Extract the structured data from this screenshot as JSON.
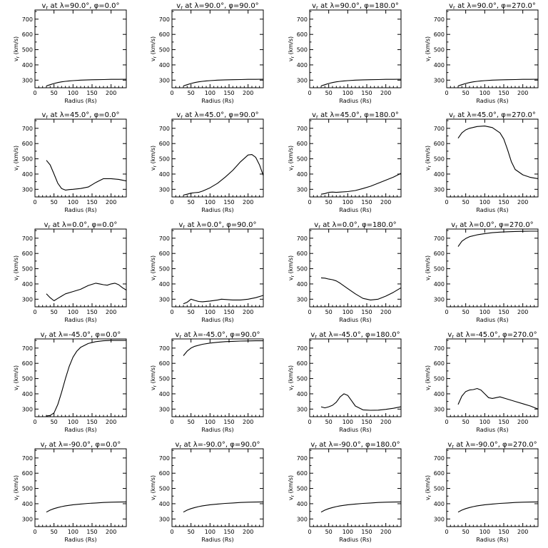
{
  "figure": {
    "axis_common": {
      "xlabel": "Radius (Rs)",
      "ylabel": "vr (km/s)",
      "xlim": [
        0,
        240
      ],
      "ylim": [
        250,
        760
      ],
      "xticks": [
        0,
        50,
        100,
        150,
        200
      ],
      "yticks": [
        300,
        400,
        500,
        600,
        700
      ]
    }
  },
  "chart_data": [
    {
      "type": "line",
      "title": "vr at λ=90.0°, φ=0.0°",
      "lambda_deg": "90.0",
      "phi_deg": "0.0",
      "xlabel": "Radius (Rs)",
      "ylabel": "vr (km/s)",
      "xlim": [
        0,
        240
      ],
      "ylim": [
        250,
        760
      ],
      "series": [
        {
          "x": [
            30,
            40,
            50,
            60,
            70,
            80,
            90,
            100,
            120,
            140,
            160,
            180,
            200,
            220,
            240
          ],
          "y": [
            262,
            270,
            278,
            284,
            289,
            292,
            295,
            297,
            300,
            302,
            303,
            304,
            305,
            305,
            306
          ]
        }
      ]
    },
    {
      "type": "line",
      "title": "vr at λ=90.0°, φ=90.0°",
      "lambda_deg": "90.0",
      "phi_deg": "90.0",
      "xlabel": "Radius (Rs)",
      "ylabel": "vr (km/s)",
      "xlim": [
        0,
        240
      ],
      "ylim": [
        250,
        760
      ],
      "series": [
        {
          "x": [
            30,
            40,
            50,
            60,
            70,
            80,
            90,
            100,
            120,
            140,
            160,
            180,
            200,
            220,
            240
          ],
          "y": [
            262,
            270,
            278,
            284,
            289,
            292,
            295,
            297,
            300,
            302,
            303,
            304,
            305,
            305,
            306
          ]
        }
      ]
    },
    {
      "type": "line",
      "title": "vr at λ=90.0°, φ=180.0°",
      "lambda_deg": "90.0",
      "phi_deg": "180.0",
      "xlabel": "Radius (Rs)",
      "ylabel": "vr (km/s)",
      "xlim": [
        0,
        240
      ],
      "ylim": [
        250,
        760
      ],
      "series": [
        {
          "x": [
            30,
            40,
            50,
            60,
            70,
            80,
            90,
            100,
            120,
            140,
            160,
            180,
            200,
            220,
            240
          ],
          "y": [
            262,
            270,
            278,
            284,
            289,
            292,
            295,
            297,
            300,
            302,
            303,
            304,
            305,
            305,
            306
          ]
        }
      ]
    },
    {
      "type": "line",
      "title": "vr at λ=90.0°, φ=270.0°",
      "lambda_deg": "90.0",
      "phi_deg": "270.0",
      "xlabel": "Radius (Rs)",
      "ylabel": "vr (km/s)",
      "xlim": [
        0,
        240
      ],
      "ylim": [
        250,
        760
      ],
      "series": [
        {
          "x": [
            30,
            40,
            50,
            60,
            70,
            80,
            90,
            100,
            120,
            140,
            160,
            180,
            200,
            220,
            240
          ],
          "y": [
            262,
            270,
            278,
            284,
            289,
            292,
            295,
            297,
            300,
            302,
            303,
            304,
            305,
            305,
            306
          ]
        }
      ]
    },
    {
      "type": "line",
      "title": "vr at λ=45.0°, φ=0.0°",
      "lambda_deg": "45.0",
      "phi_deg": "0.0",
      "xlabel": "Radius (Rs)",
      "ylabel": "vr (km/s)",
      "xlim": [
        0,
        240
      ],
      "ylim": [
        250,
        760
      ],
      "series": [
        {
          "x": [
            30,
            40,
            50,
            60,
            70,
            80,
            90,
            100,
            120,
            140,
            160,
            180,
            200,
            220,
            240
          ],
          "y": [
            490,
            460,
            400,
            340,
            305,
            295,
            298,
            300,
            305,
            315,
            345,
            370,
            370,
            365,
            355
          ]
        }
      ]
    },
    {
      "type": "line",
      "title": "vr at λ=45.0°, φ=90.0°",
      "lambda_deg": "45.0",
      "phi_deg": "90.0",
      "xlabel": "Radius (Rs)",
      "ylabel": "vr (km/s)",
      "xlim": [
        0,
        240
      ],
      "ylim": [
        250,
        760
      ],
      "series": [
        {
          "x": [
            30,
            40,
            50,
            60,
            70,
            80,
            100,
            120,
            140,
            160,
            180,
            200,
            210,
            220,
            230,
            240
          ],
          "y": [
            262,
            268,
            275,
            278,
            280,
            288,
            310,
            340,
            380,
            425,
            480,
            525,
            528,
            510,
            460,
            390
          ]
        }
      ]
    },
    {
      "type": "line",
      "title": "vr at λ=45.0°, φ=180.0°",
      "lambda_deg": "45.0",
      "phi_deg": "180.0",
      "xlabel": "Radius (Rs)",
      "ylabel": "vr (km/s)",
      "xlim": [
        0,
        240
      ],
      "ylim": [
        250,
        760
      ],
      "series": [
        {
          "x": [
            30,
            40,
            50,
            60,
            70,
            80,
            100,
            120,
            140,
            160,
            180,
            200,
            220,
            240
          ],
          "y": [
            268,
            272,
            280,
            282,
            280,
            282,
            285,
            292,
            305,
            320,
            340,
            360,
            380,
            405
          ]
        }
      ]
    },
    {
      "type": "line",
      "title": "vr at λ=45.0°, φ=270.0°",
      "lambda_deg": "45.0",
      "phi_deg": "270.0",
      "xlabel": "Radius (Rs)",
      "ylabel": "vr (km/s)",
      "xlim": [
        0,
        240
      ],
      "ylim": [
        250,
        760
      ],
      "series": [
        {
          "x": [
            30,
            40,
            50,
            60,
            80,
            100,
            120,
            140,
            150,
            160,
            170,
            180,
            200,
            220,
            240
          ],
          "y": [
            635,
            670,
            690,
            700,
            712,
            715,
            705,
            670,
            630,
            560,
            480,
            430,
            395,
            378,
            370
          ]
        }
      ]
    },
    {
      "type": "line",
      "title": "vr at λ=0.0°, φ=0.0°",
      "lambda_deg": "0.0",
      "phi_deg": "0.0",
      "xlabel": "Radius (Rs)",
      "ylabel": "vr (km/s)",
      "xlim": [
        0,
        240
      ],
      "ylim": [
        250,
        760
      ],
      "series": [
        {
          "x": [
            30,
            40,
            50,
            60,
            70,
            80,
            100,
            120,
            140,
            160,
            170,
            180,
            190,
            200,
            210,
            220,
            230,
            240
          ],
          "y": [
            335,
            310,
            290,
            305,
            320,
            335,
            350,
            365,
            390,
            405,
            400,
            395,
            392,
            400,
            405,
            395,
            375,
            360
          ]
        }
      ]
    },
    {
      "type": "line",
      "title": "vr at λ=0.0°, φ=90.0°",
      "lambda_deg": "0.0",
      "phi_deg": "90.0",
      "xlabel": "Radius (Rs)",
      "ylabel": "vr (km/s)",
      "xlim": [
        0,
        240
      ],
      "ylim": [
        250,
        760
      ],
      "series": [
        {
          "x": [
            30,
            40,
            50,
            60,
            70,
            80,
            100,
            120,
            130,
            140,
            160,
            180,
            200,
            220,
            240
          ],
          "y": [
            270,
            280,
            300,
            292,
            285,
            283,
            288,
            295,
            300,
            298,
            295,
            295,
            300,
            310,
            325
          ]
        }
      ]
    },
    {
      "type": "line",
      "title": "vr at λ=0.0°, φ=180.0°",
      "lambda_deg": "0.0",
      "phi_deg": "180.0",
      "xlabel": "Radius (Rs)",
      "ylabel": "vr (km/s)",
      "xlim": [
        0,
        240
      ],
      "ylim": [
        250,
        760
      ],
      "series": [
        {
          "x": [
            30,
            40,
            50,
            60,
            70,
            80,
            100,
            120,
            140,
            160,
            180,
            200,
            220,
            240
          ],
          "y": [
            440,
            438,
            432,
            428,
            420,
            405,
            370,
            335,
            305,
            295,
            300,
            320,
            345,
            375
          ]
        }
      ]
    },
    {
      "type": "line",
      "title": "vr at λ=0.0°, φ=270.0°",
      "lambda_deg": "0.0",
      "phi_deg": "270.0",
      "xlabel": "Radius (Rs)",
      "ylabel": "vr (km/s)",
      "xlim": [
        0,
        240
      ],
      "ylim": [
        250,
        760
      ],
      "series": [
        {
          "x": [
            30,
            40,
            50,
            60,
            80,
            100,
            120,
            140,
            160,
            180,
            200,
            220,
            240
          ],
          "y": [
            645,
            680,
            698,
            710,
            722,
            730,
            736,
            740,
            742,
            744,
            745,
            746,
            746
          ]
        }
      ]
    },
    {
      "type": "line",
      "title": "vr at λ=-45.0°, φ=0.0°",
      "lambda_deg": "-45.0",
      "phi_deg": "0.0",
      "xlabel": "Radius (Rs)",
      "ylabel": "vr (km/s)",
      "xlim": [
        0,
        240
      ],
      "ylim": [
        250,
        760
      ],
      "series": [
        {
          "x": [
            30,
            40,
            50,
            60,
            70,
            80,
            90,
            100,
            110,
            120,
            140,
            160,
            180,
            200,
            220,
            240
          ],
          "y": [
            255,
            258,
            275,
            330,
            410,
            500,
            580,
            640,
            680,
            705,
            730,
            742,
            748,
            750,
            750,
            750
          ]
        }
      ]
    },
    {
      "type": "line",
      "title": "vr at λ=-45.0°, φ=90.0°",
      "lambda_deg": "-45.0",
      "phi_deg": "90.0",
      "xlabel": "Radius (Rs)",
      "ylabel": "vr (km/s)",
      "xlim": [
        0,
        240
      ],
      "ylim": [
        250,
        760
      ],
      "series": [
        {
          "x": [
            30,
            40,
            50,
            60,
            80,
            100,
            120,
            140,
            160,
            180,
            200,
            220,
            240
          ],
          "y": [
            650,
            680,
            700,
            712,
            725,
            733,
            738,
            742,
            744,
            746,
            747,
            748,
            748
          ]
        }
      ]
    },
    {
      "type": "line",
      "title": "vr at λ=-45.0°, φ=180.0°",
      "lambda_deg": "-45.0",
      "phi_deg": "180.0",
      "xlabel": "Radius (Rs)",
      "ylabel": "vr (km/s)",
      "xlim": [
        0,
        240
      ],
      "ylim": [
        250,
        760
      ],
      "series": [
        {
          "x": [
            30,
            40,
            50,
            60,
            70,
            80,
            90,
            100,
            110,
            120,
            140,
            160,
            180,
            200,
            220,
            240
          ],
          "y": [
            315,
            308,
            315,
            325,
            345,
            380,
            400,
            390,
            355,
            320,
            295,
            292,
            293,
            298,
            305,
            315
          ]
        }
      ]
    },
    {
      "type": "line",
      "title": "vr at λ=-45.0°, φ=270.0°",
      "lambda_deg": "-45.0",
      "phi_deg": "270.0",
      "xlabel": "Radius (Rs)",
      "ylabel": "vr (km/s)",
      "xlim": [
        0,
        240
      ],
      "ylim": [
        250,
        760
      ],
      "series": [
        {
          "x": [
            30,
            40,
            50,
            60,
            70,
            80,
            90,
            100,
            110,
            120,
            130,
            140,
            160,
            180,
            200,
            220,
            240
          ],
          "y": [
            330,
            385,
            415,
            425,
            428,
            435,
            425,
            400,
            375,
            370,
            375,
            380,
            365,
            350,
            335,
            320,
            300
          ]
        }
      ]
    },
    {
      "type": "line",
      "title": "vr at λ=-90.0°, φ=0.0°",
      "lambda_deg": "-90.0",
      "phi_deg": "0.0",
      "xlabel": "Radius (Rs)",
      "ylabel": "vr (km/s)",
      "xlim": [
        0,
        240
      ],
      "ylim": [
        250,
        760
      ],
      "series": [
        {
          "x": [
            30,
            40,
            50,
            60,
            70,
            80,
            100,
            120,
            140,
            160,
            180,
            200,
            220,
            240
          ],
          "y": [
            345,
            358,
            368,
            375,
            381,
            386,
            393,
            398,
            402,
            405,
            408,
            410,
            411,
            412
          ]
        }
      ]
    },
    {
      "type": "line",
      "title": "vr at λ=-90.0°, φ=90.0°",
      "lambda_deg": "-90.0",
      "phi_deg": "90.0",
      "xlabel": "Radius (Rs)",
      "ylabel": "vr (km/s)",
      "xlim": [
        0,
        240
      ],
      "ylim": [
        250,
        760
      ],
      "series": [
        {
          "x": [
            30,
            40,
            50,
            60,
            70,
            80,
            100,
            120,
            140,
            160,
            180,
            200,
            220,
            240
          ],
          "y": [
            345,
            358,
            368,
            375,
            381,
            386,
            393,
            398,
            402,
            405,
            408,
            410,
            411,
            412
          ]
        }
      ]
    },
    {
      "type": "line",
      "title": "vr at λ=-90.0°, φ=180.0°",
      "lambda_deg": "-90.0",
      "phi_deg": "180.0",
      "xlabel": "Radius (Rs)",
      "ylabel": "vr (km/s)",
      "xlim": [
        0,
        240
      ],
      "ylim": [
        250,
        760
      ],
      "series": [
        {
          "x": [
            30,
            40,
            50,
            60,
            70,
            80,
            100,
            120,
            140,
            160,
            180,
            200,
            220,
            240
          ],
          "y": [
            345,
            358,
            368,
            375,
            381,
            386,
            393,
            398,
            402,
            405,
            408,
            410,
            411,
            412
          ]
        }
      ]
    },
    {
      "type": "line",
      "title": "vr at λ=-90.0°, φ=270.0°",
      "lambda_deg": "-90.0",
      "phi_deg": "270.0",
      "xlabel": "Radius (Rs)",
      "ylabel": "vr (km/s)",
      "xlim": [
        0,
        240
      ],
      "ylim": [
        250,
        760
      ],
      "series": [
        {
          "x": [
            30,
            40,
            50,
            60,
            70,
            80,
            100,
            120,
            140,
            160,
            180,
            200,
            220,
            240
          ],
          "y": [
            345,
            358,
            368,
            375,
            381,
            386,
            393,
            398,
            402,
            405,
            408,
            410,
            411,
            412
          ]
        }
      ]
    }
  ]
}
